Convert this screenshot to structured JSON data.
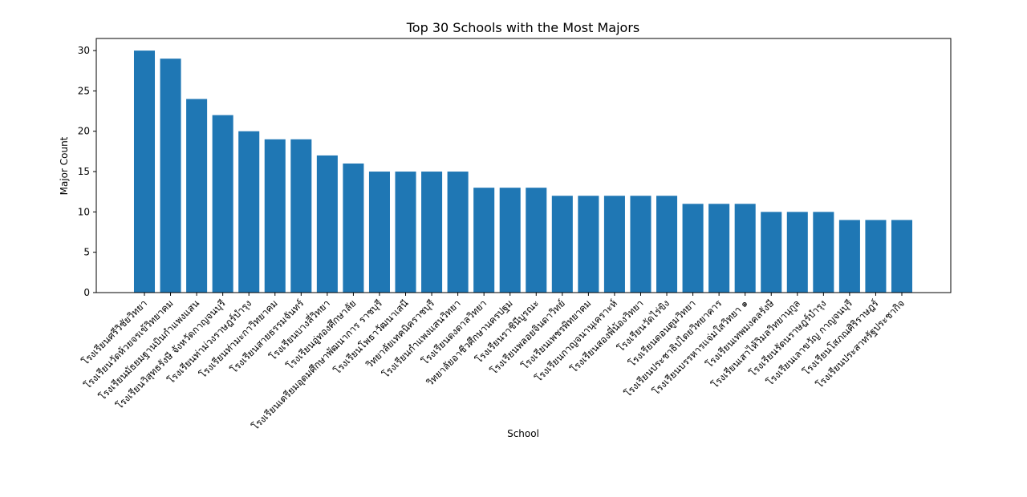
{
  "chart_data": {
    "type": "bar",
    "title": "Top 30 Schools with the Most Majors",
    "xlabel": "School",
    "ylabel": "Major Count",
    "ylim": [
      0,
      31.5
    ],
    "yticks": [
      0,
      5,
      10,
      15,
      20,
      25,
      30
    ],
    "bar_color": "#1f77b4",
    "grid": false,
    "legend": false,
    "categories": [
      "โรงเรียนศรีวิชัยวิทยา",
      "โรงเรียนวัดห้วยจรเข้วิทยาคม",
      "โรงเรียนมัธยมฐานบินกำแพงแสน",
      "โรงเรียนวิสุทธรังษี จังหวัดกาญจนบุรี",
      "โรงเรียนท่าม่วงราษฎร์บำรุง",
      "โรงเรียนท่ามะกาวิทยาคม",
      "โรงเรียนสายธรรมจันทร์",
      "โรงเรียนบางลี่วิทยา",
      "โรงเรียนอู่ทองศึกษาลัย",
      "โรงเรียนเตรียมอุดมศึกษาพัฒนาการ ราชบุรี",
      "โรงเรียนโพธาวัฒนาเสนี",
      "วิทยาลัยเทคนิคราชบุรี",
      "โรงเรียนกำแพงแสนวิทยา",
      "โรงเรียนดงตาลวิทยา",
      "วิทยาลัยอาชีวศึกษานครปฐม",
      "โรงเรียนราชินีบูรณะ",
      "โรงเรียนพลอยจินดาวิทย์",
      "โรงเรียนเพชรพิทยาคม",
      "โรงเรียนกาญจนานุเคราะห์",
      "โรงเรียนสองพี่น้องวิทยา",
      "โรงเรียนวัดไร่ขิง",
      "โรงเรียนดอนตูมวิทยา",
      "โรงเรียนประชาธิปไตยวิทยาคาร",
      "โรงเรียนบรรหารแจ่มใสวิทยา ๑",
      "โรงเรียนเทพมงคลรังษี",
      "โรงเรียนเสาไห้วิมลวิทยานุกูล",
      "โรงเรียนรัตนราษฎร์บำรุง",
      "โรงเรียนเลาขวัญ กาญจนบุรี",
      "โรงเรียนโสภณศิริราษฎร์",
      "โรงเรียนประสาทรัฐประชากิจ"
    ],
    "values": [
      30,
      29,
      24,
      22,
      20,
      19,
      19,
      17,
      16,
      15,
      15,
      15,
      15,
      13,
      13,
      13,
      12,
      12,
      12,
      12,
      12,
      11,
      11,
      11,
      10,
      10,
      10,
      9,
      9,
      9
    ]
  }
}
